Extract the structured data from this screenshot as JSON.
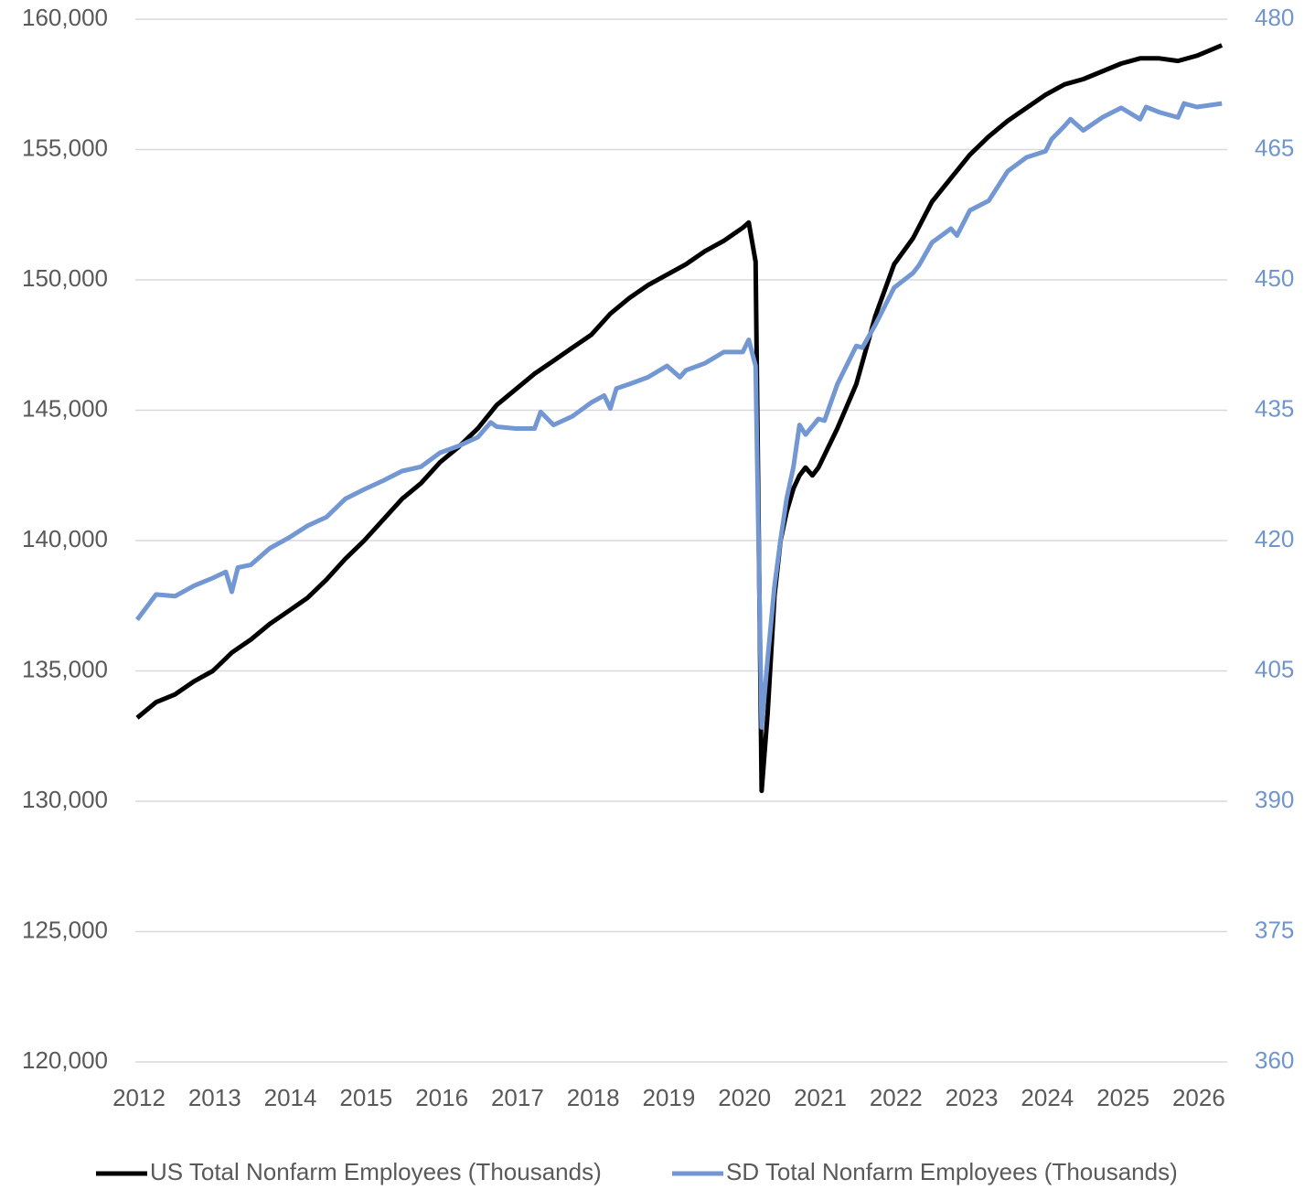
{
  "chart_data": {
    "type": "line",
    "xlim": [
      2012,
      2026.4
    ],
    "xticks": [
      2012,
      2013,
      2014,
      2015,
      2016,
      2017,
      2018,
      2019,
      2020,
      2021,
      2022,
      2023,
      2024,
      2025,
      2026
    ],
    "ylim": [
      120000,
      160000
    ],
    "yticks": [
      {
        "value": 120000,
        "label": "120,000"
      },
      {
        "value": 125000,
        "label": "125,000"
      },
      {
        "value": 130000,
        "label": "130,000"
      },
      {
        "value": 135000,
        "label": "135,000"
      },
      {
        "value": 140000,
        "label": "140,000"
      },
      {
        "value": 145000,
        "label": "145,000"
      },
      {
        "value": 150000,
        "label": "150,000"
      },
      {
        "value": 155000,
        "label": "155,000"
      },
      {
        "value": 160000,
        "label": "160,000"
      }
    ],
    "y2lim": [
      360,
      480
    ],
    "y2ticks": [
      360,
      375,
      390,
      405,
      420,
      435,
      450,
      465,
      480
    ],
    "grid": true,
    "legend": "bottom",
    "series": [
      {
        "name": "US Total Nonfarm Employees (Thousands)",
        "color": "#000000",
        "x": [
          2012,
          2012.25,
          2012.5,
          2012.75,
          2013,
          2013.25,
          2013.5,
          2013.75,
          2014,
          2014.25,
          2014.5,
          2014.75,
          2015,
          2015.25,
          2015.5,
          2015.75,
          2016,
          2016.25,
          2016.5,
          2016.75,
          2017,
          2017.25,
          2017.5,
          2017.75,
          2018,
          2018.25,
          2018.5,
          2018.75,
          2019,
          2019.25,
          2019.5,
          2019.75,
          2020,
          2020.08,
          2020.17,
          2020.25,
          2020.33,
          2020.42,
          2020.5,
          2020.58,
          2020.67,
          2020.75,
          2020.83,
          2020.92,
          2021,
          2021.25,
          2021.5,
          2021.75,
          2022,
          2022.25,
          2022.5,
          2022.75,
          2023,
          2023.25,
          2023.5,
          2023.75,
          2024,
          2024.25,
          2024.5,
          2024.75,
          2025,
          2025.25,
          2025.5,
          2025.75,
          2026,
          2026.33
        ],
        "values": [
          133200,
          133800,
          134100,
          134600,
          135000,
          135700,
          136200,
          136800,
          137300,
          137800,
          138500,
          139300,
          140000,
          140800,
          141600,
          142200,
          143000,
          143600,
          144300,
          145200,
          145800,
          146400,
          146900,
          147400,
          147900,
          148700,
          149300,
          149800,
          150200,
          150600,
          151100,
          151500,
          152000,
          152200,
          150700,
          130400,
          133400,
          137900,
          140000,
          141100,
          142000,
          142500,
          142800,
          142500,
          142800,
          144300,
          146000,
          148600,
          150600,
          151600,
          153000,
          153900,
          154800,
          155500,
          156100,
          156600,
          157100,
          157500,
          157700,
          158000,
          158300,
          158500,
          158500,
          158400,
          158600,
          159000
        ]
      },
      {
        "name": "SD Total Nonfarm Employees (Thousands)",
        "color": "#7297d3",
        "axis": "y2",
        "x": [
          2012,
          2012.25,
          2012.5,
          2012.75,
          2013,
          2013.17,
          2013.25,
          2013.33,
          2013.5,
          2013.75,
          2014,
          2014.25,
          2014.5,
          2014.75,
          2015,
          2015.25,
          2015.5,
          2015.75,
          2016,
          2016.25,
          2016.5,
          2016.67,
          2016.75,
          2017,
          2017.25,
          2017.33,
          2017.5,
          2017.75,
          2018,
          2018.17,
          2018.25,
          2018.33,
          2018.5,
          2018.75,
          2019,
          2019.17,
          2019.25,
          2019.5,
          2019.75,
          2020,
          2020.08,
          2020.17,
          2020.25,
          2020.33,
          2020.42,
          2020.5,
          2020.58,
          2020.67,
          2020.75,
          2020.83,
          2021,
          2021.08,
          2021.25,
          2021.5,
          2021.58,
          2021.75,
          2022,
          2022.25,
          2022.33,
          2022.5,
          2022.75,
          2022.83,
          2023,
          2023.25,
          2023.5,
          2023.75,
          2024,
          2024.08,
          2024.25,
          2024.33,
          2024.5,
          2024.75,
          2025,
          2025.25,
          2025.33,
          2025.5,
          2025.75,
          2025.83,
          2026,
          2026.33
        ],
        "values": [
          410.9,
          413.8,
          413.6,
          414.8,
          415.7,
          416.4,
          414.1,
          416.9,
          417.2,
          419.1,
          420.3,
          421.7,
          422.7,
          424.8,
          425.9,
          426.9,
          428.0,
          428.5,
          430.1,
          430.9,
          431.9,
          433.6,
          433.1,
          432.9,
          432.9,
          434.8,
          433.3,
          434.3,
          435.9,
          436.7,
          435.2,
          437.5,
          438.0,
          438.8,
          440.1,
          438.8,
          439.6,
          440.4,
          441.7,
          441.7,
          443.1,
          440.1,
          398.5,
          406.4,
          414.8,
          420.1,
          424.8,
          428.5,
          433.3,
          432.2,
          434.0,
          433.8,
          438.0,
          442.4,
          442.2,
          444.8,
          449.1,
          450.8,
          451.7,
          454.3,
          455.9,
          455.1,
          458.0,
          459.1,
          462.5,
          464.1,
          464.8,
          466.2,
          467.7,
          468.5,
          467.2,
          468.7,
          469.8,
          468.5,
          469.9,
          469.3,
          468.7,
          470.3,
          469.9,
          470.3
        ]
      }
    ]
  }
}
